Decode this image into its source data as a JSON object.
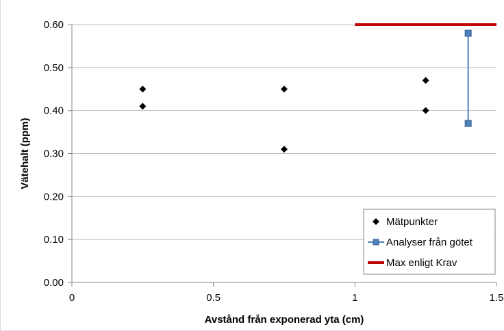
{
  "chart_data": {
    "type": "scatter",
    "title": "",
    "xlabel": "Avstånd från exponerad yta (cm)",
    "ylabel": "Vätehalt (ppm)",
    "xlim": [
      0,
      1.5
    ],
    "ylim": [
      0,
      0.6
    ],
    "x_ticks": [
      "0",
      "0.5",
      "1",
      "1.5"
    ],
    "y_ticks": [
      "0.00",
      "0.10",
      "0.20",
      "0.30",
      "0.40",
      "0.50",
      "0.60"
    ],
    "grid": "horizontal",
    "legend_position": "bottom-right",
    "series": [
      {
        "name": "Mätpunkter",
        "kind": "scatter",
        "marker": "diamond",
        "color": "#000000",
        "x": [
          0.25,
          0.25,
          0.75,
          0.75,
          1.25,
          1.25
        ],
        "y": [
          0.45,
          0.41,
          0.45,
          0.31,
          0.47,
          0.4
        ]
      },
      {
        "name": "Analyser från götet",
        "kind": "line-markers",
        "marker": "square",
        "color": "#4f81bd",
        "x": [
          1.4,
          1.4
        ],
        "y": [
          0.58,
          0.37
        ]
      },
      {
        "name": "Max enligt Krav",
        "kind": "line",
        "color": "#c00000",
        "x": [
          1.0,
          1.5
        ],
        "y": [
          0.6,
          0.6
        ]
      }
    ]
  }
}
